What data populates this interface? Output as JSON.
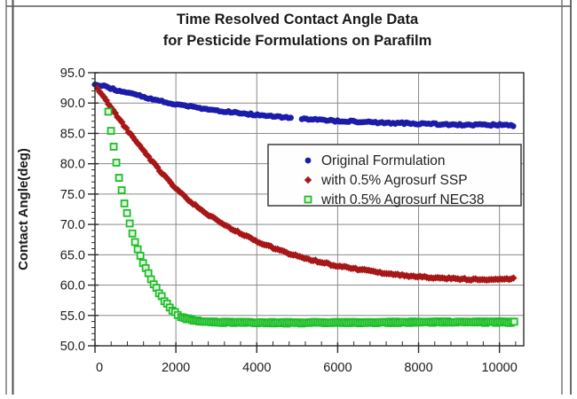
{
  "title": {
    "line1": "Time Resolved Contact Angle Data",
    "line2": "for Pesticide Formulations on Parafilm"
  },
  "chart_data": {
    "type": "scatter",
    "title": "Time Resolved Contact Angle Data for Pesticide Formulations on Parafilm",
    "xlabel": "",
    "ylabel": "Contact Angle(deg)",
    "xlim": [
      0,
      10600
    ],
    "ylim": [
      50,
      95
    ],
    "x_ticks": [
      0,
      2000,
      4000,
      6000,
      8000,
      10000
    ],
    "x_tick_labels": [
      "0",
      "2000",
      "4000",
      "6000",
      "8000",
      "10000"
    ],
    "x_minor_step": 400,
    "y_ticks": [
      50,
      55,
      60,
      65,
      70,
      75,
      80,
      85,
      90,
      95
    ],
    "y_tick_labels": [
      "50.0",
      "55.0",
      "60.0",
      "65.0",
      "70.0",
      "75.0",
      "80.0",
      "85.0",
      "90.0",
      "95.0"
    ],
    "y_minor_step": 1,
    "grid": true,
    "legend_position": "middle-right",
    "colors": {
      "axis": "#2b2b2b",
      "grid": "#8a8a8a",
      "frame": "#6e6e6e",
      "legend_border": "#3a3a3a"
    },
    "series": [
      {
        "name": "Original Formulation",
        "marker": "circle",
        "color": "#1b1caa",
        "size": 3.4,
        "x": [
          0,
          300,
          600,
          900,
          1200,
          1500,
          1800,
          2100,
          2400,
          2700,
          3000,
          3400,
          3800,
          4200,
          4600,
          5000,
          5400,
          5800,
          6200,
          6600,
          7000,
          7500,
          8000,
          8600,
          9200,
          10000,
          10380
        ],
        "y": [
          93.2,
          92.6,
          92.0,
          91.5,
          91.0,
          90.5,
          90.1,
          89.7,
          89.4,
          89.1,
          88.8,
          88.5,
          88.2,
          87.9,
          87.7,
          87.5,
          87.3,
          87.1,
          87.0,
          86.9,
          86.8,
          86.7,
          86.6,
          86.5,
          86.4,
          86.4,
          86.3
        ],
        "gaps": [
          [
            4870,
            5090
          ]
        ],
        "render_step": [
          [
            0,
            10380,
            55
          ]
        ]
      },
      {
        "name": "with 0.5% Agrosurf SSP",
        "marker": "diamond",
        "color": "#a81717",
        "size": 4.2,
        "x": [
          60,
          250,
          450,
          650,
          850,
          1050,
          1250,
          1450,
          1650,
          1850,
          2050,
          2250,
          2450,
          2650,
          2850,
          3050,
          3300,
          3550,
          3800,
          4050,
          4300,
          4600,
          4900,
          5200,
          5500,
          5900,
          6300,
          6700,
          7100,
          7500,
          8000,
          8500,
          9000,
          9500,
          10000,
          10380
        ],
        "y": [
          92.4,
          90.6,
          88.7,
          86.9,
          85.1,
          83.4,
          81.7,
          80.1,
          78.5,
          77.0,
          75.6,
          74.4,
          73.3,
          72.3,
          71.4,
          70.6,
          69.6,
          68.7,
          67.9,
          67.1,
          66.4,
          65.7,
          65.0,
          64.4,
          63.9,
          63.3,
          62.8,
          62.4,
          62.0,
          61.7,
          61.4,
          61.2,
          61.0,
          60.9,
          60.9,
          61.1
        ],
        "gaps": [],
        "render_step": [
          [
            60,
            10380,
            55
          ]
        ]
      },
      {
        "name": "with 0.5% Agrosurf NEC38",
        "marker": "square-open",
        "color": "#1dbd28",
        "fill": "#e6f9e4",
        "size": 3.5,
        "x": [
          330,
          395,
          460,
          525,
          595,
          670,
          750,
          835,
          925,
          1020,
          1120,
          1230,
          1350,
          1480,
          1620,
          1760,
          1900,
          2050,
          2250,
          2550,
          3000,
          3800,
          5000,
          6500,
          8000,
          9200,
          10380
        ],
        "y": [
          88.5,
          85.5,
          82.8,
          80.2,
          77.7,
          75.2,
          72.9,
          70.7,
          68.6,
          66.6,
          64.8,
          63.1,
          61.5,
          59.9,
          58.4,
          57.0,
          55.9,
          55.1,
          54.5,
          54.1,
          53.9,
          53.8,
          53.8,
          53.8,
          53.9,
          53.9,
          53.9
        ],
        "gaps": [],
        "render_step": [
          [
            330,
            2100,
            66
          ],
          [
            2130,
            10380,
            45
          ]
        ]
      }
    ]
  }
}
